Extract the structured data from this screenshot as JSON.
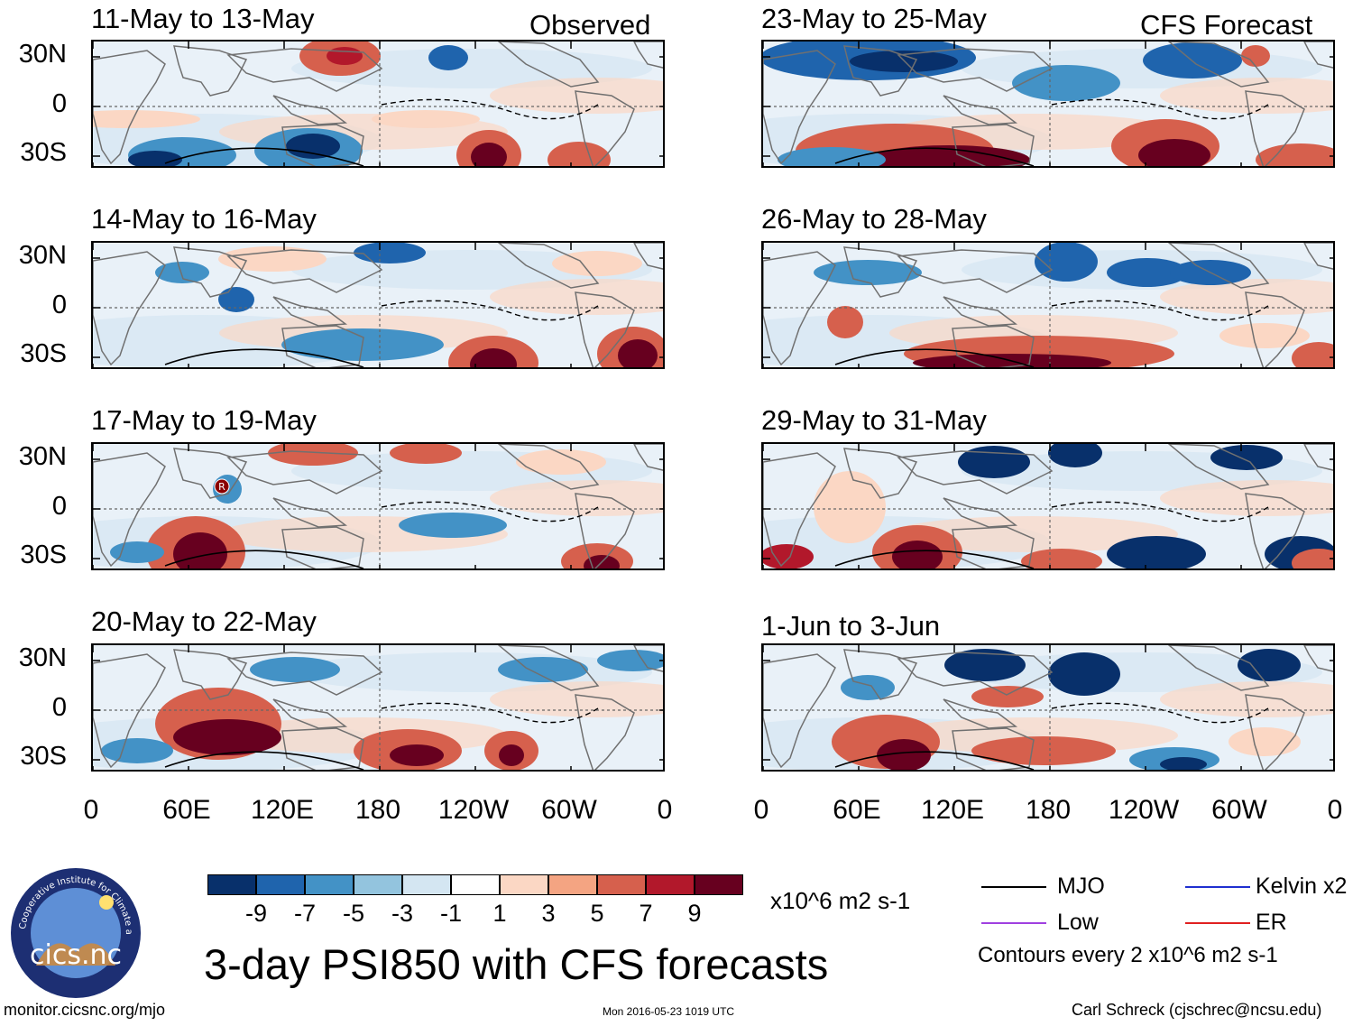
{
  "columns": {
    "left_title": "Observed",
    "right_title": "CFS Forecast"
  },
  "panels": {
    "left": [
      {
        "title": "11-May to 13-May"
      },
      {
        "title": "14-May to 16-May"
      },
      {
        "title": "17-May to 19-May"
      },
      {
        "title": "20-May to 22-May"
      }
    ],
    "right": [
      {
        "title": "23-May to 25-May"
      },
      {
        "title": "26-May to 28-May"
      },
      {
        "title": "29-May to 31-May"
      },
      {
        "title": "1-Jun to 3-Jun"
      }
    ]
  },
  "axes": {
    "lat_labels": [
      "30N",
      "0",
      "30S"
    ],
    "lon_labels": [
      "0",
      "60E",
      "120E",
      "180",
      "120W",
      "60W",
      "0"
    ]
  },
  "colorbar": {
    "labels": [
      "-9",
      "-7",
      "-5",
      "-3",
      "-1",
      "1",
      "3",
      "5",
      "7",
      "9"
    ],
    "colors": [
      "#08306b",
      "#1f64ad",
      "#4392c6",
      "#93c4de",
      "#d4e6f2",
      "#ffffff",
      "#fbd7c4",
      "#f4a482",
      "#d6604d",
      "#b2182b",
      "#67001f"
    ],
    "units": "x10^6 m2 s-1"
  },
  "legend": {
    "mjo": "MJO",
    "kelvin": "Kelvin x2",
    "low": "Low",
    "er": "ER",
    "contour_note": "Contours every 2 x10^6 m2 s-1",
    "colors": {
      "mjo": "#000000",
      "kelvin": "#1f2fd0",
      "low": "#a040e0",
      "er": "#e02020"
    }
  },
  "title": "3-day PSI850 with CFS forecasts",
  "logo": {
    "text": "cics.nc",
    "ring_text": "Cooperative Institute for Climate and Satellites"
  },
  "footer": {
    "url": "monitor.cicsnc.org/mjo",
    "timestamp": "Mon 2016-05-23 1019 UTC",
    "author": "Carl Schreck (cjschrec@ncsu.edu)"
  },
  "storm_marker": {
    "label": "R"
  }
}
